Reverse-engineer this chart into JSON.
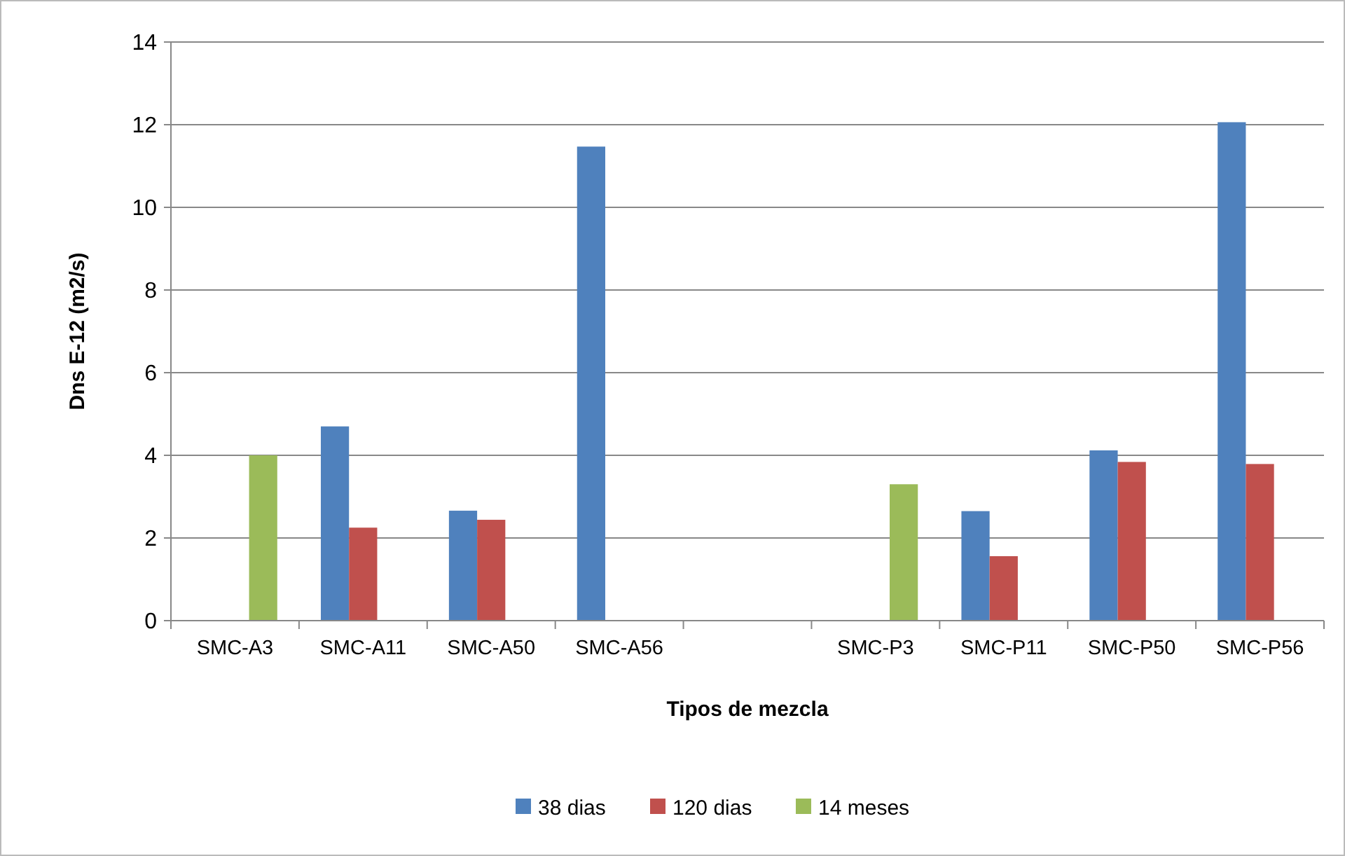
{
  "chart_data": {
    "type": "bar",
    "xlabel": "Tipos de mezcla",
    "ylabel": "Dns E-12 (m2/s)",
    "categories": [
      "SMC-A3",
      "SMC-A11",
      "SMC-A50",
      "SMC-A56",
      null,
      "SMC-P3",
      "SMC-P11",
      "SMC-P50",
      "SMC-P56"
    ],
    "series": [
      {
        "name": "38 dias",
        "color": "#4f81bd",
        "values": [
          null,
          4.7,
          2.66,
          11.47,
          null,
          null,
          2.65,
          4.12,
          12.06
        ]
      },
      {
        "name": "120 dias",
        "color": "#c0504d",
        "values": [
          null,
          2.25,
          2.44,
          null,
          null,
          null,
          1.56,
          3.84,
          3.79
        ]
      },
      {
        "name": "14 meses",
        "color": "#9bbb59",
        "values": [
          4.0,
          null,
          null,
          null,
          null,
          3.3,
          null,
          null,
          null
        ]
      }
    ],
    "ylim": [
      0,
      14
    ],
    "yticks": [
      0,
      2,
      4,
      6,
      8,
      10,
      12,
      14
    ],
    "grid": "y",
    "legend": "bottom"
  }
}
